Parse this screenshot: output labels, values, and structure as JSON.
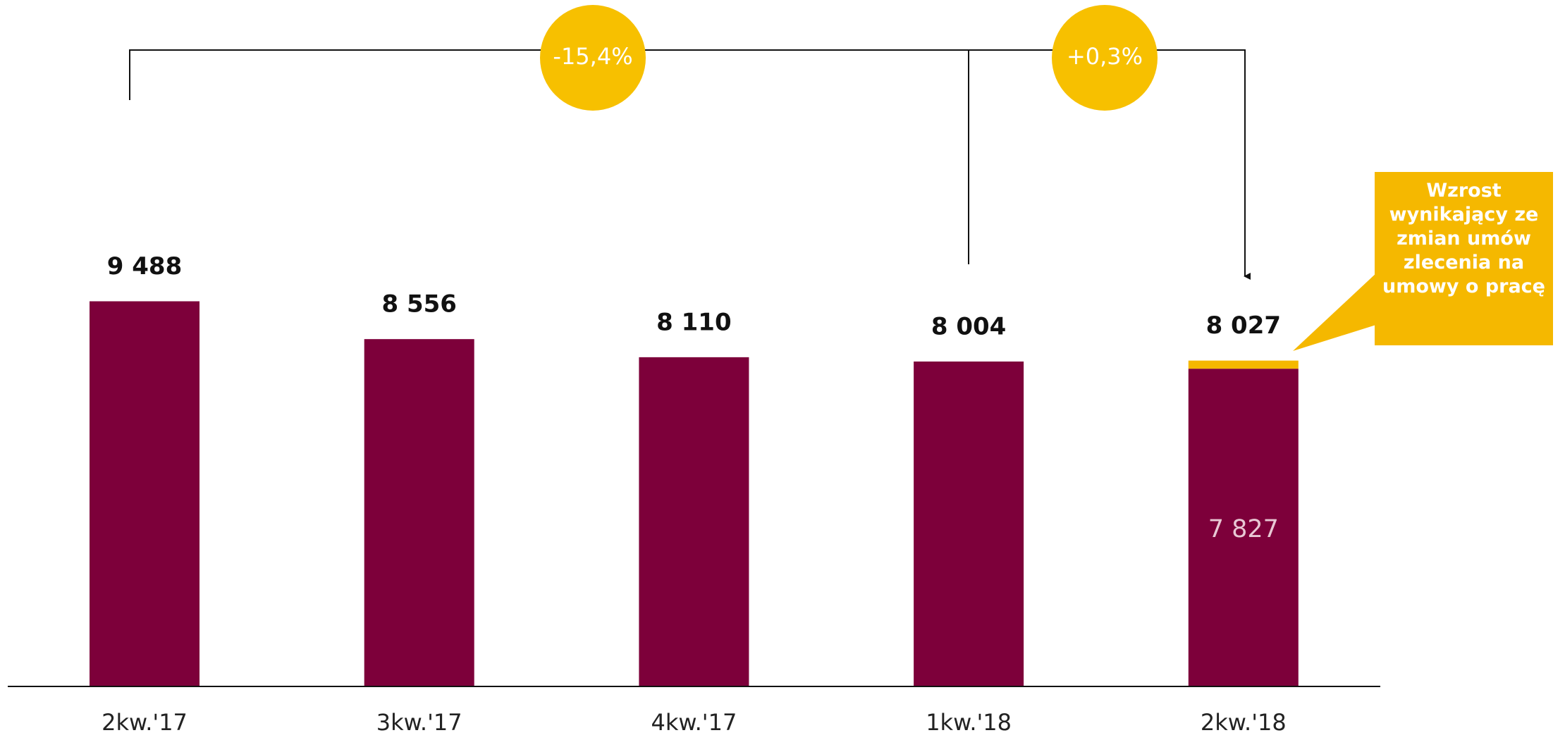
{
  "chart_data": {
    "type": "bar",
    "categories": [
      "2kw.'17",
      "3kw.'17",
      "4kw.'17",
      "1kw.'18",
      "2kw.'18"
    ],
    "series": [
      {
        "color": "#7d003a",
        "values": [
          9488,
          8556,
          8110,
          8004,
          7827
        ],
        "value_labels": [
          null,
          null,
          null,
          null,
          "7 827"
        ]
      },
      {
        "color": "#f5b800",
        "values": [
          null,
          null,
          null,
          null,
          200
        ]
      }
    ],
    "totals": [
      9488,
      8556,
      8110,
      8004,
      8027
    ],
    "total_labels": [
      "9 488",
      "8 556",
      "8 110",
      "8 004",
      "8 027"
    ],
    "ylim": [
      0,
      10000
    ],
    "annotations": [
      "-15,4%",
      "+0,3%"
    ],
    "callout": "Wzrost wynikający ze zmian umów zlecenia na umowy o pracę"
  }
}
